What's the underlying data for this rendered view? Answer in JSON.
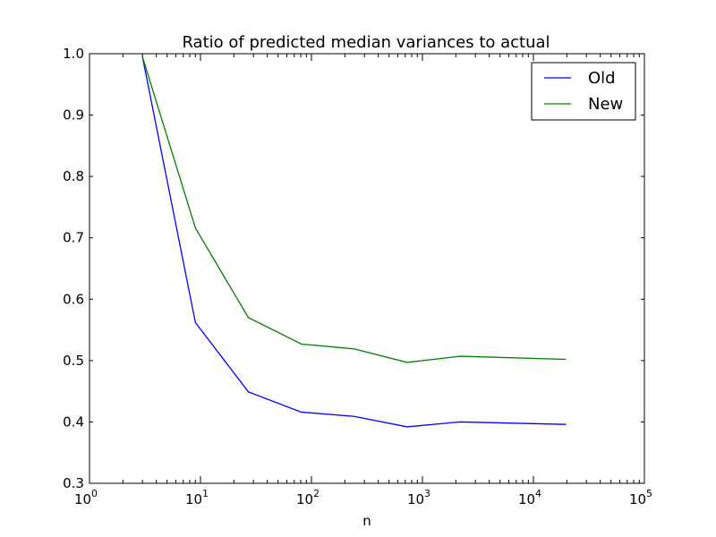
{
  "chart_data": {
    "type": "line",
    "title": "Ratio of predicted median variances to actual",
    "xlabel": "n",
    "ylabel": "",
    "xscale": "log",
    "xlim": [
      1,
      100000
    ],
    "ylim": [
      0.3,
      1.0
    ],
    "x_ticks": [
      {
        "value": 1,
        "base": "10",
        "exp": "0"
      },
      {
        "value": 10,
        "base": "10",
        "exp": "1"
      },
      {
        "value": 100,
        "base": "10",
        "exp": "2"
      },
      {
        "value": 1000,
        "base": "10",
        "exp": "3"
      },
      {
        "value": 10000,
        "base": "10",
        "exp": "4"
      },
      {
        "value": 100000,
        "base": "10",
        "exp": "5"
      }
    ],
    "y_ticks": [
      {
        "value": 0.3,
        "label": "0.3"
      },
      {
        "value": 0.4,
        "label": "0.4"
      },
      {
        "value": 0.5,
        "label": "0.5"
      },
      {
        "value": 0.6,
        "label": "0.6"
      },
      {
        "value": 0.7,
        "label": "0.7"
      },
      {
        "value": 0.8,
        "label": "0.8"
      },
      {
        "value": 0.9,
        "label": "0.9"
      },
      {
        "value": 1.0,
        "label": "1.0"
      }
    ],
    "x": [
      3,
      9,
      27,
      81,
      243,
      729,
      2187,
      19683
    ],
    "series": [
      {
        "name": "Old",
        "color": "#0000ff",
        "values": [
          0.995,
          0.562,
          0.449,
          0.416,
          0.409,
          0.392,
          0.4,
          0.396
        ]
      },
      {
        "name": "New",
        "color": "#008000",
        "values": [
          0.995,
          0.716,
          0.57,
          0.527,
          0.519,
          0.497,
          0.507,
          0.502
        ]
      }
    ],
    "grid": false,
    "legend_position": "top-right"
  }
}
